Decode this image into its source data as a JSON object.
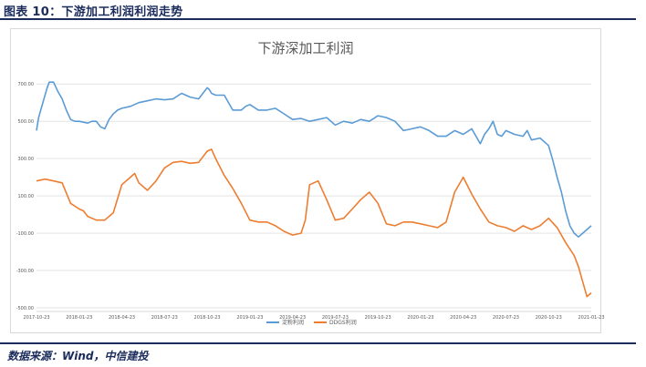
{
  "figure": {
    "title": "图表 10：下游加工利润利润走势",
    "source": "数据来源：Wind，中信建投"
  },
  "chart_data": {
    "type": "line",
    "title": "下游深加工利润",
    "xlabel": "",
    "ylabel": "",
    "ylim": [
      -500,
      750
    ],
    "grid": true,
    "legend_position": "bottom",
    "x_tick_labels": [
      "2017-10-23",
      "2018-01-23",
      "2018-04-23",
      "2018-07-23",
      "2018-10-23",
      "2019-01-23",
      "2019-04-23",
      "2019-07-23",
      "2019-10-23",
      "2020-01-23",
      "2020-04-23",
      "2020-07-23",
      "2020-10-23",
      "2021-01-23"
    ],
    "y_tick_labels": [
      "-500.00",
      "-300.00",
      "-100.00",
      "100.00",
      "300.00",
      "500.00",
      "700.00"
    ],
    "y_ticks": [
      -500,
      -300,
      -100,
      100,
      300,
      500,
      700
    ],
    "x_range": [
      0,
      13
    ],
    "series": [
      {
        "name": "淀粉利润",
        "color": "#5b9bd5",
        "x": [
          0,
          0.05,
          0.15,
          0.25,
          0.3,
          0.4,
          0.5,
          0.6,
          0.7,
          0.8,
          0.9,
          1.0,
          1.2,
          1.3,
          1.4,
          1.5,
          1.6,
          1.7,
          1.8,
          1.9,
          2.0,
          2.2,
          2.4,
          2.6,
          2.8,
          3.0,
          3.2,
          3.4,
          3.6,
          3.8,
          4.0,
          4.05,
          4.1,
          4.2,
          4.4,
          4.6,
          4.8,
          4.9,
          5.0,
          5.2,
          5.4,
          5.6,
          5.8,
          6.0,
          6.2,
          6.4,
          6.6,
          6.8,
          7.0,
          7.2,
          7.4,
          7.6,
          7.8,
          8.0,
          8.2,
          8.4,
          8.6,
          8.8,
          9.0,
          9.2,
          9.4,
          9.6,
          9.8,
          10.0,
          10.2,
          10.3,
          10.4,
          10.5,
          10.6,
          10.7,
          10.8,
          10.9,
          11.0,
          11.2,
          11.4,
          11.5,
          11.6,
          11.8,
          12.0,
          12.1,
          12.2,
          12.3,
          12.4,
          12.5,
          12.6,
          12.7,
          12.8,
          12.9,
          13.0
        ],
        "values": [
          450,
          520,
          600,
          680,
          710,
          710,
          660,
          620,
          560,
          510,
          500,
          500,
          490,
          500,
          500,
          470,
          460,
          510,
          540,
          560,
          570,
          580,
          600,
          610,
          620,
          615,
          620,
          650,
          630,
          620,
          680,
          670,
          650,
          640,
          640,
          560,
          560,
          580,
          590,
          560,
          560,
          570,
          540,
          510,
          515,
          500,
          510,
          520,
          480,
          500,
          490,
          510,
          500,
          530,
          520,
          500,
          450,
          460,
          470,
          450,
          420,
          420,
          450,
          430,
          460,
          420,
          380,
          430,
          460,
          500,
          430,
          420,
          450,
          430,
          420,
          450,
          400,
          410,
          370,
          290,
          200,
          120,
          20,
          -60,
          -100,
          -120,
          -100,
          -80,
          -60
        ]
      },
      {
        "name": "DDGS利润",
        "color": "#ed7d31",
        "x": [
          0,
          0.2,
          0.4,
          0.6,
          0.8,
          1.0,
          1.1,
          1.2,
          1.4,
          1.6,
          1.8,
          2.0,
          2.2,
          2.3,
          2.4,
          2.6,
          2.8,
          3.0,
          3.2,
          3.4,
          3.6,
          3.8,
          4.0,
          4.1,
          4.2,
          4.4,
          4.6,
          4.8,
          5.0,
          5.2,
          5.4,
          5.6,
          5.8,
          6.0,
          6.2,
          6.3,
          6.4,
          6.6,
          6.8,
          7.0,
          7.2,
          7.4,
          7.6,
          7.8,
          8.0,
          8.2,
          8.4,
          8.6,
          8.8,
          9.0,
          9.2,
          9.4,
          9.6,
          9.8,
          10.0,
          10.2,
          10.4,
          10.6,
          10.8,
          11.0,
          11.2,
          11.4,
          11.6,
          11.8,
          12.0,
          12.2,
          12.4,
          12.6,
          12.7,
          12.8,
          12.9,
          13.0
        ],
        "values": [
          180,
          190,
          180,
          170,
          60,
          30,
          20,
          -10,
          -30,
          -30,
          10,
          160,
          200,
          220,
          170,
          130,
          180,
          250,
          280,
          285,
          275,
          280,
          340,
          350,
          300,
          210,
          140,
          60,
          -30,
          -40,
          -40,
          -60,
          -90,
          -110,
          -100,
          -30,
          160,
          180,
          80,
          -30,
          -20,
          30,
          80,
          120,
          60,
          -50,
          -60,
          -40,
          -40,
          -50,
          -60,
          -70,
          -40,
          120,
          200,
          110,
          30,
          -40,
          -60,
          -70,
          -90,
          -60,
          -80,
          -60,
          -20,
          -70,
          -150,
          -220,
          -280,
          -360,
          -440,
          -420
        ]
      }
    ]
  }
}
